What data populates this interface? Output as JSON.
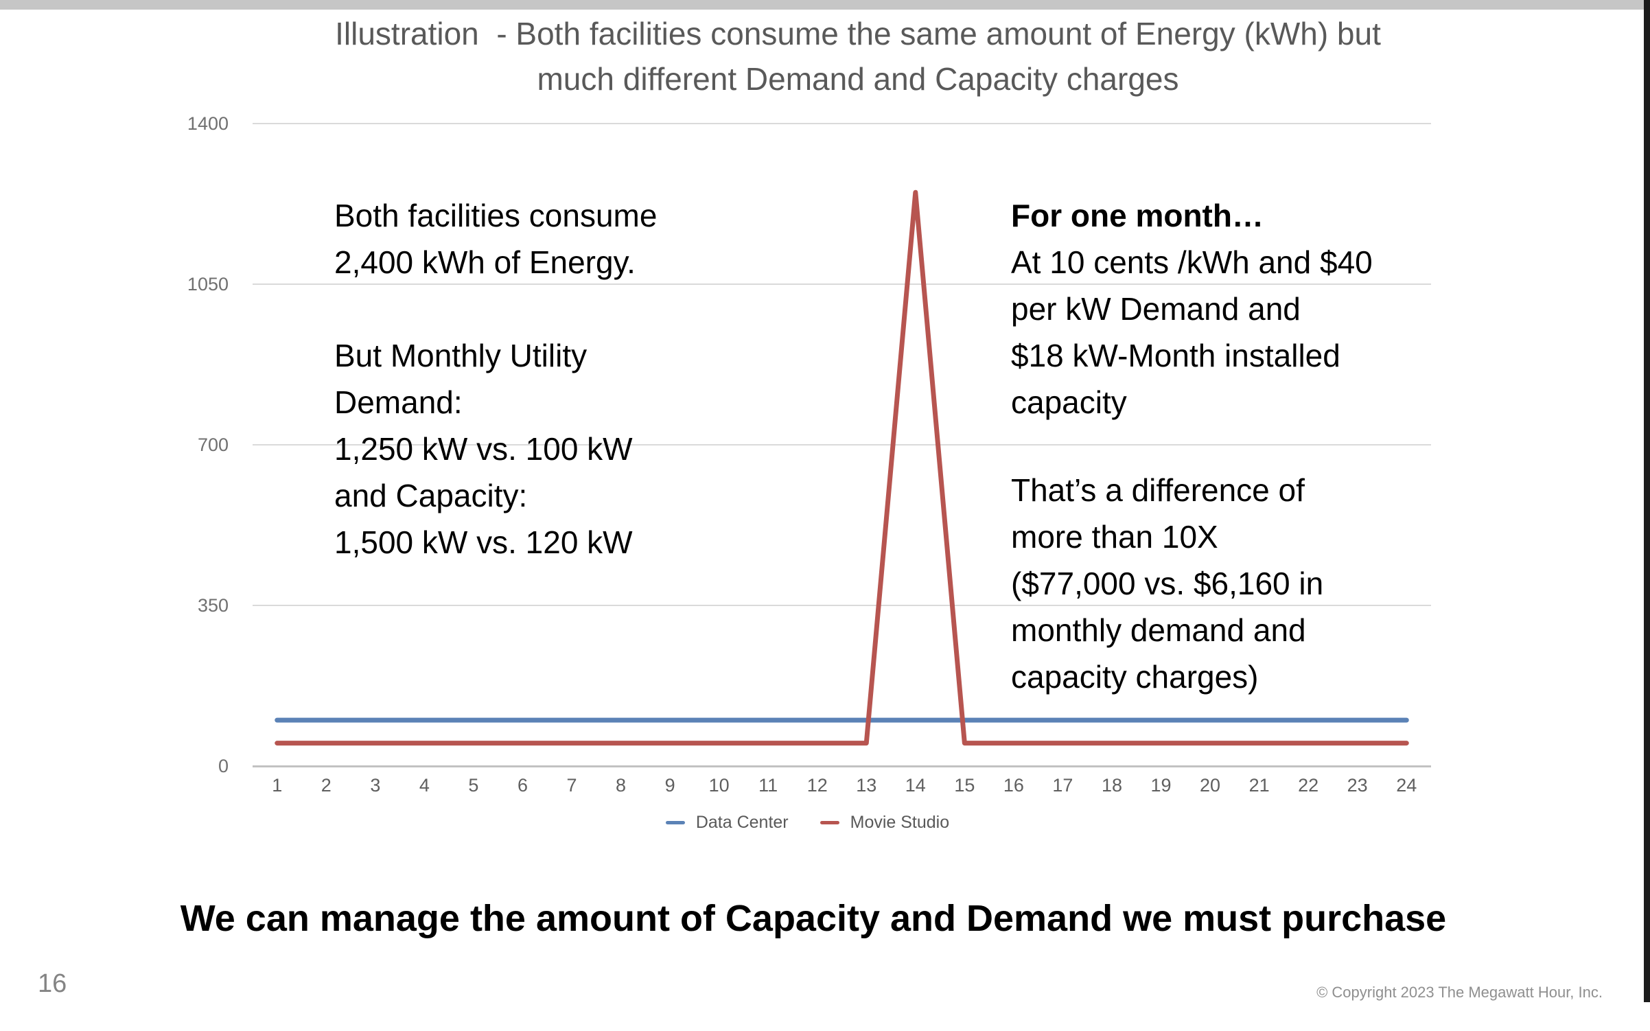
{
  "slide": {
    "title_lines": [
      "Illustration  - Both facilities consume the same amount of Energy (kWh) but",
      "much different Demand and Capacity charges"
    ],
    "bottom_statement": "We can manage the amount of Capacity and Demand we must purchase",
    "page_number": "16",
    "copyright": "© Copyright 2023 The Megawatt Hour, Inc."
  },
  "annotations": {
    "left_lines": [
      "Both facilities consume",
      "2,400 kWh of Energy.",
      "",
      "But Monthly Utility",
      "Demand:",
      "1,250 kW vs. 100 kW",
      "and Capacity:",
      "1,500 kW vs. 120 kW"
    ],
    "right_heading": "For one month…",
    "right_top_lines": [
      "At 10 cents /kWh and $40",
      "per kW Demand and",
      "$18 kW-Month installed",
      "capacity"
    ],
    "right_bottom_lines": [
      "That’s a difference of",
      "more than 10X",
      "($77,000 vs. $6,160 in",
      "monthly demand and",
      "capacity charges)"
    ]
  },
  "chart_data": {
    "type": "line",
    "x": [
      1,
      2,
      3,
      4,
      5,
      6,
      7,
      8,
      9,
      10,
      11,
      12,
      13,
      14,
      15,
      16,
      17,
      18,
      19,
      20,
      21,
      22,
      23,
      24
    ],
    "series": [
      {
        "name": "Data Center",
        "color": "#5B82B6",
        "values": [
          100,
          100,
          100,
          100,
          100,
          100,
          100,
          100,
          100,
          100,
          100,
          100,
          100,
          100,
          100,
          100,
          100,
          100,
          100,
          100,
          100,
          100,
          100,
          100
        ]
      },
      {
        "name": "Movie Studio",
        "color": "#B75550",
        "values": [
          50,
          50,
          50,
          50,
          50,
          50,
          50,
          50,
          50,
          50,
          50,
          50,
          50,
          1250,
          50,
          50,
          50,
          50,
          50,
          50,
          50,
          50,
          50,
          50
        ]
      }
    ],
    "title": "",
    "xlabel": "",
    "ylabel": "",
    "ylim": [
      0,
      1400
    ],
    "yticks": [
      0,
      350,
      700,
      1050,
      1400
    ],
    "grid": true,
    "legend_position": "bottom"
  }
}
